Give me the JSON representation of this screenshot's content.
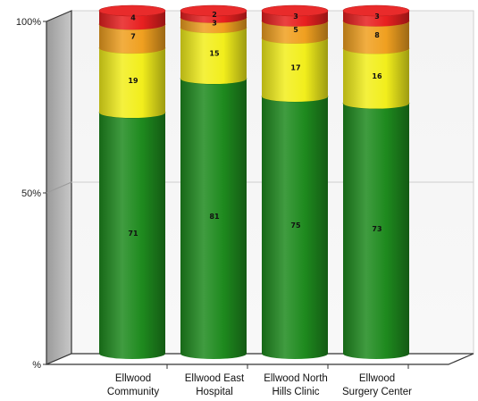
{
  "chart_data": {
    "type": "bar",
    "stacked": true,
    "percent_stacked": true,
    "shape": "cylinder",
    "view": "3d",
    "categories": [
      [
        "Ellwood",
        "Community"
      ],
      [
        "Ellwood East",
        "Hospital"
      ],
      [
        "Ellwood North",
        "Hills Clinic"
      ],
      [
        "Ellwood",
        "Surgery Center"
      ]
    ],
    "series": [
      {
        "color": "#1e8a1e",
        "values": [
          71,
          81,
          75,
          73
        ]
      },
      {
        "color": "#f2ee1c",
        "values": [
          19,
          15,
          17,
          16
        ]
      },
      {
        "color": "#f0a020",
        "values": [
          7,
          3,
          5,
          8
        ]
      },
      {
        "color": "#e82020",
        "values": [
          4,
          2,
          3,
          3
        ]
      }
    ],
    "y_ticks": [
      "%",
      "50%",
      "100%"
    ],
    "ylim": [
      0,
      100
    ],
    "grid": true,
    "legend": "none"
  }
}
